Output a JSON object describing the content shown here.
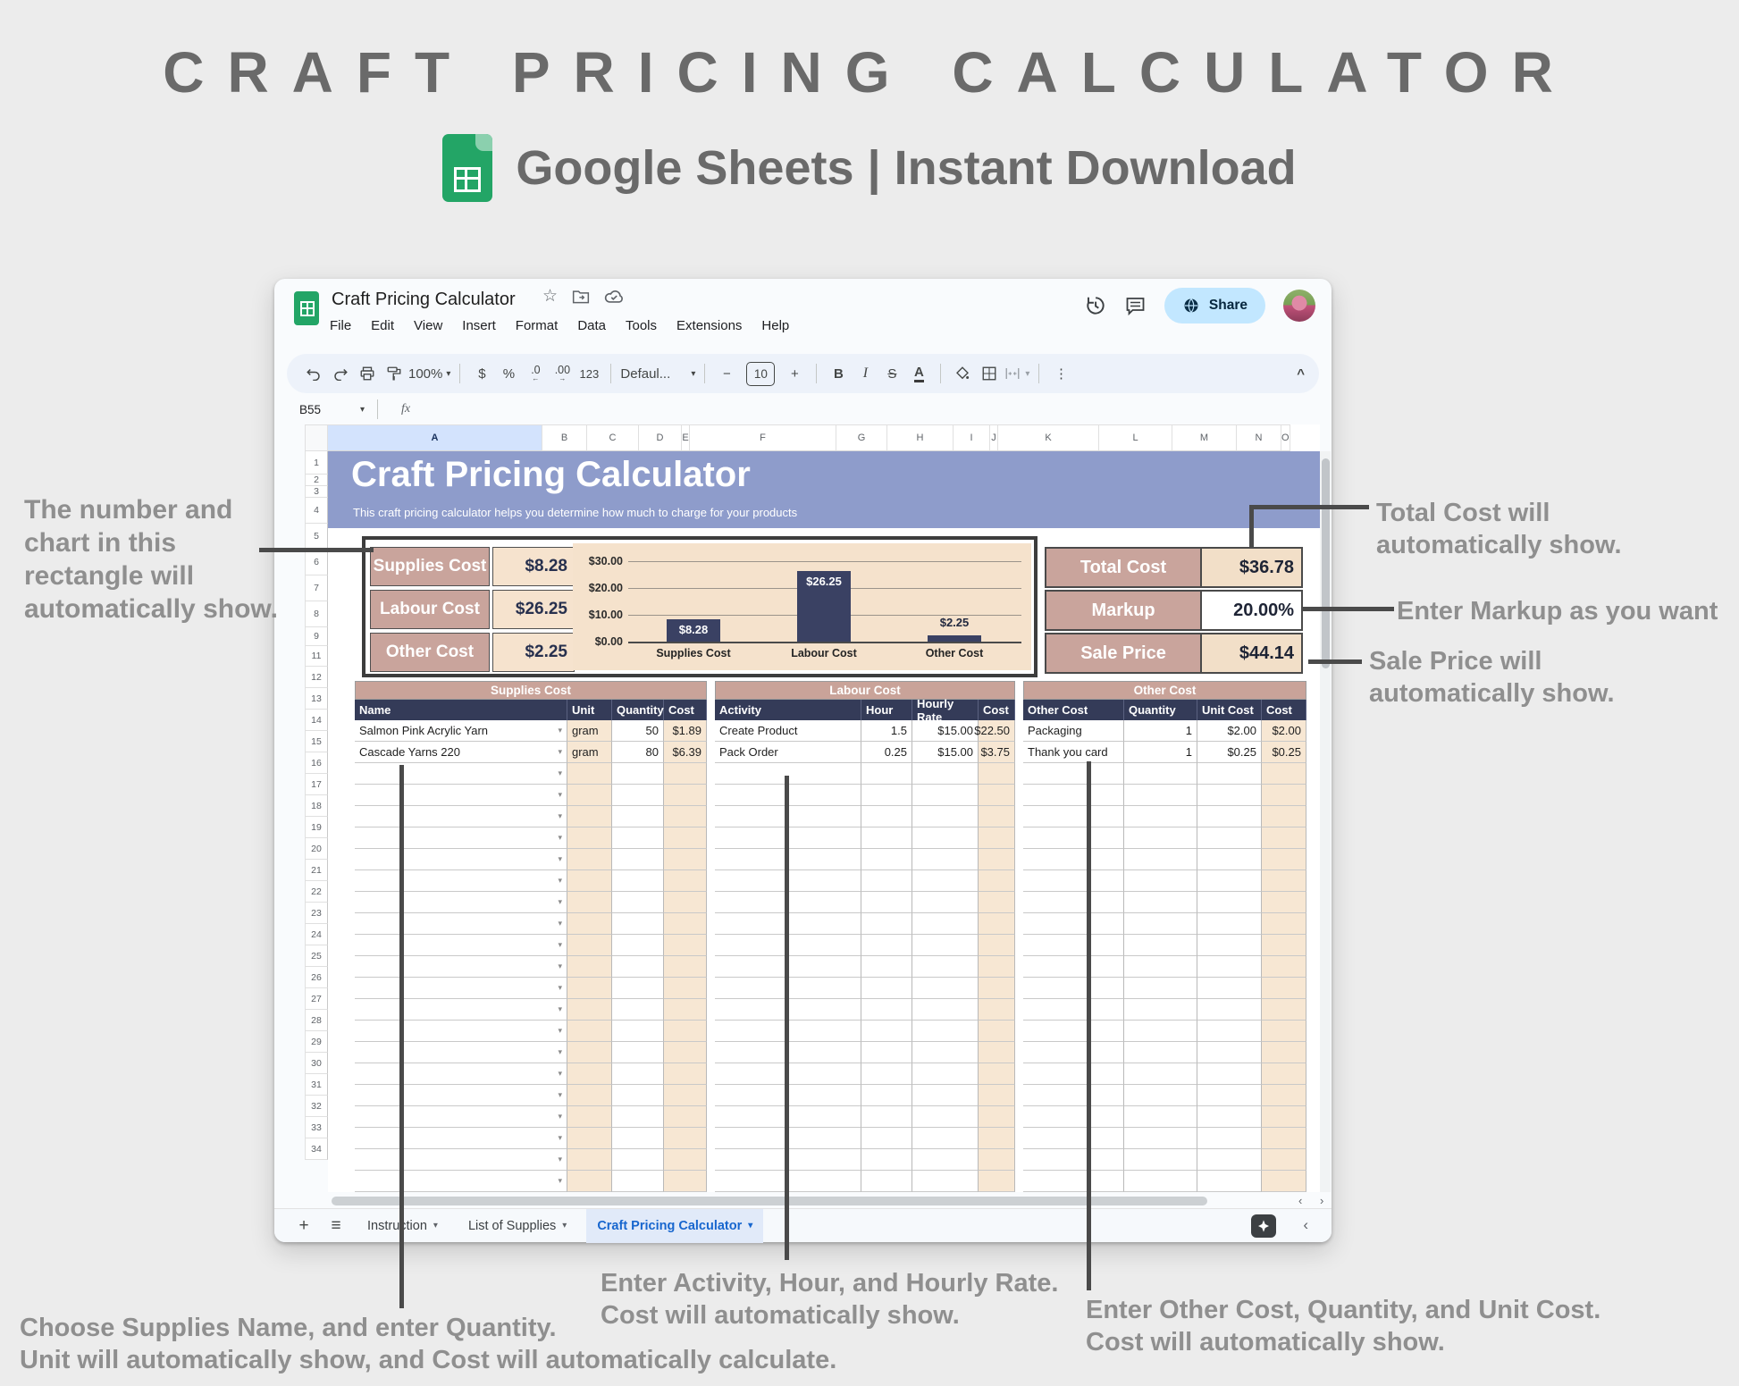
{
  "page": {
    "title": "CRAFT PRICING CALCULATOR",
    "subtitle": "Google Sheets | Instant Download"
  },
  "icons": {
    "dropdown": "▾",
    "star": "☆",
    "more": "⋮",
    "collapse": "^",
    "plus_tab": "+",
    "all_sheets": "≡",
    "chevron_left": "‹",
    "scroll_arrows": "‹ ›",
    "minus": "−",
    "plus": "+",
    "dec_left_arrow": "←",
    "dec_right_arrow": "→"
  },
  "window": {
    "doc_title": "Craft Pricing Calculator",
    "menu_items": [
      "File",
      "Edit",
      "View",
      "Insert",
      "Format",
      "Data",
      "Tools",
      "Extensions",
      "Help"
    ],
    "share_label": "Share",
    "name_box": "B55",
    "fx": "fx",
    "toolbar": {
      "zoom": "100%",
      "currency": "$",
      "percent": "%",
      "dec_dec": ".0",
      "dec_inc": ".00",
      "format_123": "123",
      "font_name": "Defaul...",
      "font_size": "10",
      "bold": "B",
      "italic": "I",
      "strike": "S",
      "text_color": "A"
    }
  },
  "sheet": {
    "column_letters": [
      "A",
      "B",
      "C",
      "D",
      "E",
      "F",
      "G",
      "H",
      "I",
      "J",
      "K",
      "L",
      "M",
      "N",
      "O"
    ],
    "row_numbers": [
      "1",
      "2",
      "3",
      "4",
      "5",
      "6",
      "7",
      "8",
      "9",
      "11",
      "12",
      "13",
      "14",
      "15",
      "16",
      "17",
      "18",
      "19",
      "20",
      "21",
      "22",
      "23",
      "24",
      "25",
      "26",
      "27",
      "28",
      "29",
      "30",
      "31",
      "32",
      "33",
      "34"
    ],
    "banner": {
      "title": "Craft Pricing Calculator",
      "subtitle": "This craft pricing calculator helps you determine how much to charge for your products"
    },
    "summary": {
      "rows": [
        {
          "label": "Supplies Cost",
          "value": "$8.28"
        },
        {
          "label": "Labour Cost",
          "value": "$26.25"
        },
        {
          "label": "Other Cost",
          "value": "$2.25"
        }
      ]
    },
    "totals": {
      "rows": [
        {
          "label": "Total Cost",
          "value": "$36.78"
        },
        {
          "label": "Markup",
          "value": "20.00%"
        },
        {
          "label": "Sale Price",
          "value": "$44.14"
        }
      ]
    },
    "supplies": {
      "section_title": "Supplies Cost",
      "headers": [
        "Name",
        "Unit",
        "Quantity",
        "Cost"
      ],
      "rows": [
        {
          "name": "Salmon Pink Acrylic Yarn",
          "unit": "gram",
          "quantity": "50",
          "cost": "$1.89"
        },
        {
          "name": "Cascade Yarns 220",
          "unit": "gram",
          "quantity": "80",
          "cost": "$6.39"
        }
      ]
    },
    "labour": {
      "section_title": "Labour Cost",
      "headers": [
        "Activity",
        "Hour",
        "Hourly Rate",
        "Cost"
      ],
      "rows": [
        {
          "activity": "Create Product",
          "hour": "1.5",
          "rate": "$15.00",
          "cost": "$22.50"
        },
        {
          "activity": "Pack Order",
          "hour": "0.25",
          "rate": "$15.00",
          "cost": "$3.75"
        }
      ]
    },
    "other": {
      "section_title": "Other Cost",
      "headers": [
        "Other Cost",
        "Quantity",
        "Unit Cost",
        "Cost"
      ],
      "rows": [
        {
          "name": "Packaging",
          "quantity": "1",
          "unit_cost": "$2.00",
          "cost": "$2.00"
        },
        {
          "name": "Thank you card",
          "quantity": "1",
          "unit_cost": "$0.25",
          "cost": "$0.25"
        }
      ]
    },
    "tabs": [
      {
        "label": "Instruction",
        "active": false
      },
      {
        "label": "List of Supplies",
        "active": false
      },
      {
        "label": "Craft Pricing Calculator",
        "active": true
      }
    ]
  },
  "chart_data": {
    "type": "bar",
    "categories": [
      "Supplies Cost",
      "Labour Cost",
      "Other Cost"
    ],
    "values": [
      8.28,
      26.25,
      2.25
    ],
    "data_labels": [
      "$8.28",
      "$26.25",
      "$2.25"
    ],
    "yticks": [
      {
        "label": "$30.00",
        "value": 30
      },
      {
        "label": "$20.00",
        "value": 20
      },
      {
        "label": "$10.00",
        "value": 10
      },
      {
        "label": "$0.00",
        "value": 0
      }
    ],
    "ylim": [
      0,
      30
    ],
    "grid": true,
    "legend": false,
    "bar_color": "#3A4163",
    "panel_color": "#F5E2CC"
  },
  "annotations": {
    "left": "The number and\nchart in this\nrectangle will\nautomatically show.",
    "total": "Total Cost will\nautomatically show.",
    "markup": "Enter Markup as you want",
    "sale": "Sale Price will\nautomatically show.",
    "supplies": "Choose Supplies Name, and enter Quantity.\nUnit will automatically show, and Cost will automatically calculate.",
    "labour": "Enter Activity, Hour, and Hourly Rate.\nCost will automatically show.",
    "other": "Enter Other Cost, Quantity, and Unit Cost.\nCost will automatically show."
  },
  "colors": {
    "rose": "#C9A49C",
    "cream": "#F6E3CE",
    "navy": "#343B58",
    "banner_purple": "#8E9CCB",
    "sheets_green": "#23A566",
    "share_blue": "#C2E7FF",
    "active_tab_blue": "#1766CE",
    "annotation_gray": "#8F8F8F",
    "connector": "#4A4A4A"
  }
}
